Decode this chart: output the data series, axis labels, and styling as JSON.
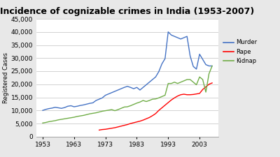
{
  "title": "Incidence of cognizable crimes in India (1953-2007)",
  "ylabel": "Registered Cases",
  "ylim": [
    0,
    45000
  ],
  "yticks": [
    0,
    5000,
    10000,
    15000,
    20000,
    25000,
    30000,
    35000,
    40000,
    45000
  ],
  "xticks": [
    1953,
    1963,
    1973,
    1983,
    1993,
    2003
  ],
  "xlim": [
    1951,
    2009
  ],
  "murder": {
    "years": [
      1953,
      1954,
      1955,
      1956,
      1957,
      1958,
      1959,
      1960,
      1961,
      1962,
      1963,
      1964,
      1965,
      1966,
      1967,
      1968,
      1969,
      1970,
      1971,
      1972,
      1973,
      1974,
      1975,
      1976,
      1977,
      1978,
      1979,
      1980,
      1981,
      1982,
      1983,
      1984,
      1985,
      1986,
      1987,
      1988,
      1989,
      1990,
      1991,
      1992,
      1993,
      1994,
      1995,
      1996,
      1997,
      1998,
      1999,
      2000,
      2001,
      2002,
      2003,
      2004,
      2005,
      2006,
      2007
    ],
    "values": [
      10000,
      10400,
      10700,
      10900,
      11200,
      11000,
      10800,
      11100,
      11600,
      11800,
      11400,
      11600,
      11900,
      12100,
      12400,
      12700,
      12900,
      13800,
      14300,
      14800,
      15800,
      16300,
      16800,
      17300,
      17800,
      18300,
      18800,
      19200,
      18800,
      18300,
      18800,
      17800,
      18800,
      19800,
      20800,
      21800,
      22800,
      24800,
      27800,
      29800,
      40000,
      38800,
      38300,
      37800,
      37300,
      37800,
      38300,
      30800,
      26800,
      25800,
      31500,
      29500,
      27500,
      27000,
      27000
    ],
    "color": "#4472c4"
  },
  "rape": {
    "years": [
      1971,
      1972,
      1973,
      1974,
      1975,
      1976,
      1977,
      1978,
      1979,
      1980,
      1981,
      1982,
      1983,
      1984,
      1985,
      1986,
      1987,
      1988,
      1989,
      1990,
      1991,
      1992,
      1993,
      1994,
      1995,
      1996,
      1997,
      1998,
      1999,
      2000,
      2001,
      2002,
      2003,
      2004,
      2005,
      2006,
      2007
    ],
    "values": [
      2500,
      2700,
      2800,
      3000,
      3200,
      3400,
      3700,
      4000,
      4300,
      4600,
      5000,
      5300,
      5600,
      5900,
      6300,
      6800,
      7300,
      8000,
      8800,
      10000,
      11000,
      12000,
      13000,
      14000,
      14800,
      15500,
      16000,
      16200,
      16000,
      16000,
      16100,
      16300,
      16500,
      18000,
      19000,
      20000,
      20500
    ],
    "color": "#ff0000"
  },
  "kidnap": {
    "years": [
      1953,
      1954,
      1955,
      1956,
      1957,
      1958,
      1959,
      1960,
      1961,
      1962,
      1963,
      1964,
      1965,
      1966,
      1967,
      1968,
      1969,
      1970,
      1971,
      1972,
      1973,
      1974,
      1975,
      1976,
      1977,
      1978,
      1979,
      1980,
      1981,
      1982,
      1983,
      1984,
      1985,
      1986,
      1987,
      1988,
      1989,
      1990,
      1991,
      1992,
      1993,
      1994,
      1995,
      1996,
      1997,
      1998,
      1999,
      2000,
      2001,
      2002,
      2003,
      2004,
      2005,
      2006,
      2007
    ],
    "values": [
      5200,
      5400,
      5700,
      5900,
      6100,
      6400,
      6600,
      6800,
      7000,
      7200,
      7400,
      7700,
      7900,
      8100,
      8400,
      8700,
      8900,
      9100,
      9400,
      9700,
      9900,
      10100,
      10300,
      9900,
      10300,
      10800,
      11300,
      11400,
      11800,
      12300,
      12800,
      13200,
      13800,
      13400,
      13800,
      14300,
      14400,
      14800,
      15300,
      15800,
      20300,
      20300,
      20800,
      20300,
      20800,
      21300,
      21800,
      21800,
      20800,
      19800,
      22800,
      21800,
      17000,
      24000,
      27000
    ],
    "color": "#70ad47"
  },
  "fig_bg_color": "#e8e8e8",
  "plot_bg_color": "#ffffff",
  "title_fontsize": 9,
  "label_fontsize": 6,
  "tick_fontsize": 6.5,
  "legend_labels": [
    "Murder",
    "Rape",
    "Kidnap"
  ],
  "legend_colors": [
    "#4472c4",
    "#ff0000",
    "#70ad47"
  ]
}
